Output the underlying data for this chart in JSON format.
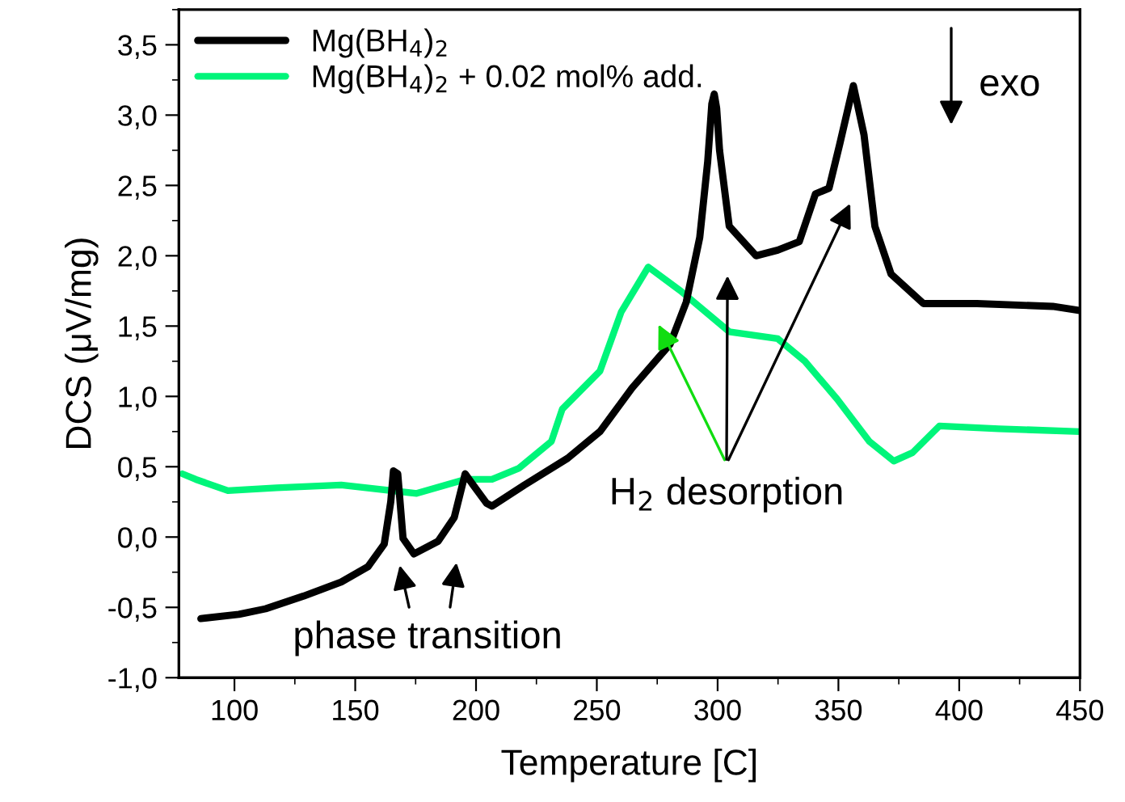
{
  "chart_data": {
    "type": "line",
    "xlabel": "Temperature [C]",
    "ylabel": "DCS (μV/mg)",
    "xlim": [
      77,
      450
    ],
    "xticks": [
      100,
      150,
      200,
      250,
      300,
      350,
      400,
      450
    ],
    "ylim": [
      -1.0,
      3.75
    ],
    "yticks": [
      {
        "value": -1.0,
        "label": "-1,0"
      },
      {
        "value": -0.5,
        "label": "-0,5"
      },
      {
        "value": 0.0,
        "label": "0,0"
      },
      {
        "value": 0.5,
        "label": "0,5"
      },
      {
        "value": 1.0,
        "label": "1,0"
      },
      {
        "value": 1.5,
        "label": "1,5"
      },
      {
        "value": 2.0,
        "label": "2,0"
      },
      {
        "value": 2.5,
        "label": "2,5"
      },
      {
        "value": 3.0,
        "label": "3,0"
      },
      {
        "value": 3.5,
        "label": "3,5"
      }
    ],
    "grid": false,
    "legend": "top left",
    "marker": "none",
    "line_style": "solid",
    "series": [
      {
        "name": "Mg(BH$_{4}$)$_{2}$",
        "color": "#000000",
        "x": [
          86.1,
          101.8,
          112.9,
          128.6,
          144.2,
          155.3,
          162,
          164.7,
          165.8,
          167.6,
          169.8,
          174.3,
          184.3,
          191,
          195.5,
          198.8,
          204.4,
          206.6,
          220,
          237.9,
          251.3,
          264.6,
          280.3,
          287,
          292.6,
          295.9,
          297.6,
          298.6,
          299.6,
          300.8,
          304.8,
          315.9,
          324.9,
          333.8,
          340.5,
          346.1,
          350.5,
          356.2,
          360.6,
          365.1,
          371.8,
          385.2,
          407.4,
          438.7,
          450
        ],
        "values": [
          -0.58,
          -0.55,
          -0.51,
          -0.42,
          -0.32,
          -0.21,
          -0.05,
          0.25,
          0.47,
          0.45,
          -0.01,
          -0.12,
          -0.03,
          0.14,
          0.45,
          0.37,
          0.24,
          0.22,
          0.37,
          0.56,
          0.75,
          1.06,
          1.37,
          1.67,
          2.13,
          2.67,
          3.08,
          3.15,
          3.05,
          2.75,
          2.21,
          2.0,
          2.04,
          2.1,
          2.44,
          2.48,
          2.79,
          3.21,
          2.86,
          2.21,
          1.87,
          1.66,
          1.66,
          1.64,
          1.61
        ]
      },
      {
        "name": "Mg(BH$_{4}$)$_{2}$ + 0.02 mol% add.",
        "color": "#00f57a",
        "x": [
          78.4,
          84,
          97.3,
          117.4,
          144.2,
          175.4,
          195.5,
          206.6,
          217.8,
          231.2,
          235.7,
          251.3,
          260.1,
          271.3,
          284.7,
          304.8,
          324.9,
          336.1,
          349.5,
          362.8,
          372.9,
          380.7,
          391.8,
          416.4,
          450
        ],
        "values": [
          0.45,
          0.41,
          0.33,
          0.35,
          0.37,
          0.31,
          0.41,
          0.41,
          0.49,
          0.68,
          0.91,
          1.18,
          1.6,
          1.92,
          1.75,
          1.46,
          1.41,
          1.25,
          0.98,
          0.68,
          0.54,
          0.6,
          0.79,
          0.77,
          0.75
        ]
      }
    ],
    "annotations": [
      "phase transition",
      "H$_{2}$ desorption",
      "exo"
    ]
  }
}
